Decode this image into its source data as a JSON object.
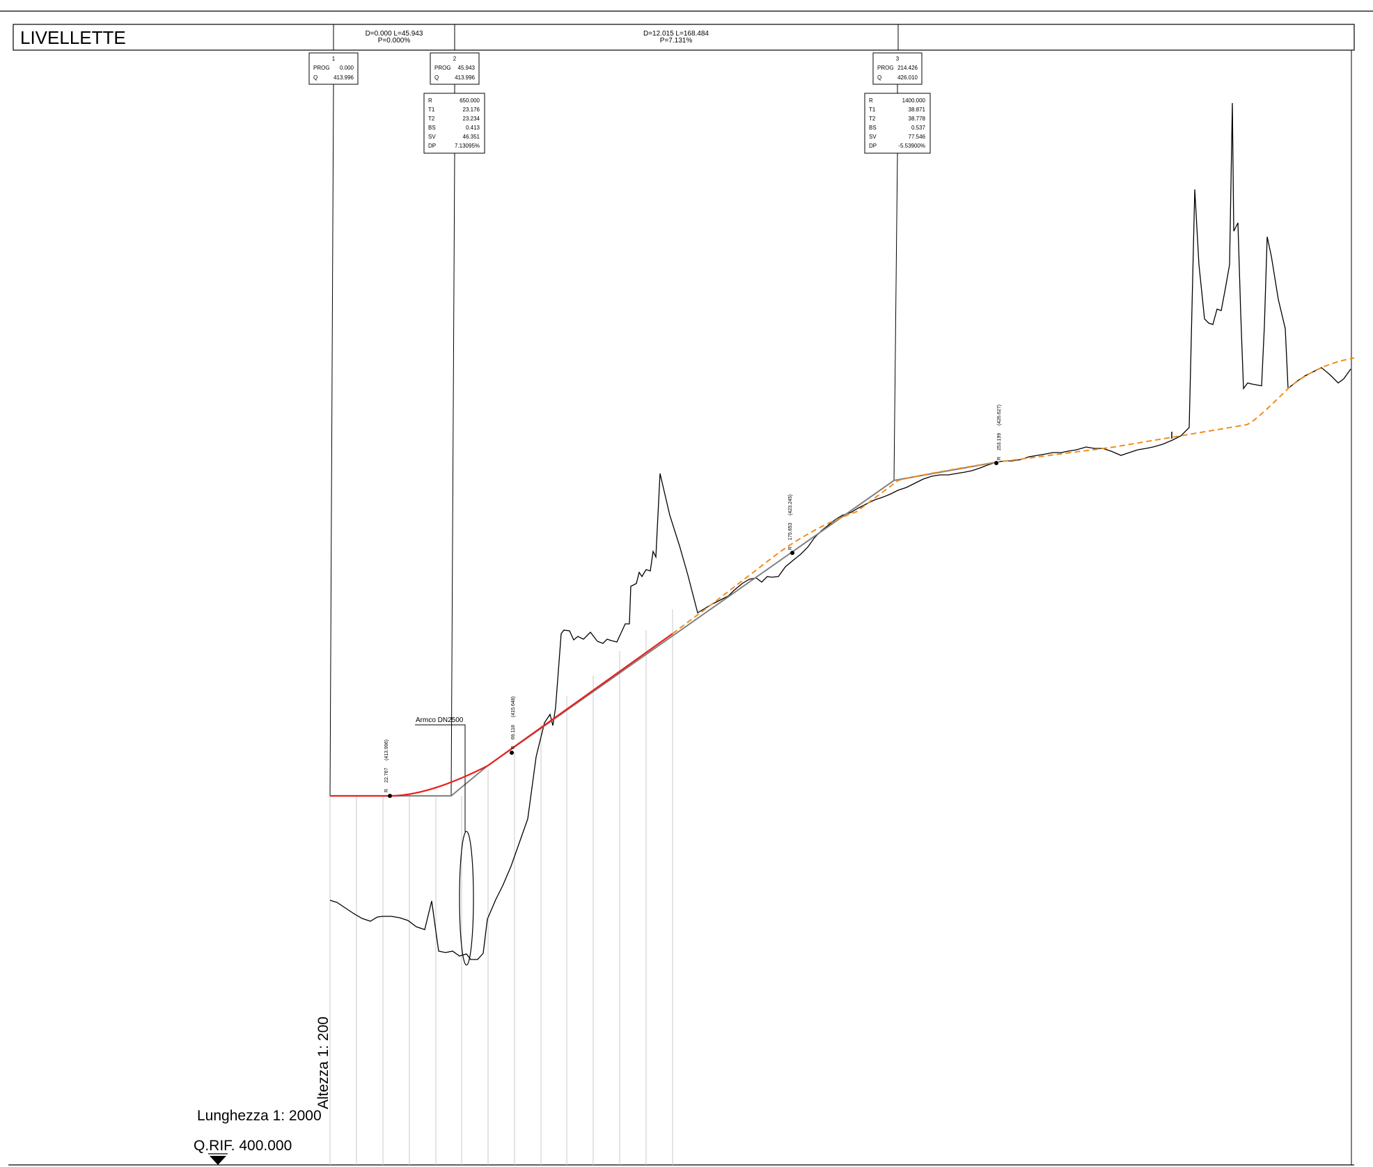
{
  "title": "LIVELLETTE",
  "segments": [
    {
      "line1": "D=0.000 L=45.943",
      "line2": "P=0.000%"
    },
    {
      "line1": "D=12.015 L=168.484",
      "line2": "P=7.131%"
    }
  ],
  "vertices": [
    {
      "num": "1",
      "prog_label": "PROG",
      "prog": "0.000",
      "q_label": "Q",
      "q": "413.996"
    },
    {
      "num": "2",
      "prog_label": "PROG",
      "prog": "45.943",
      "q_label": "Q",
      "q": "413.996"
    },
    {
      "num": "3",
      "prog_label": "PROG",
      "prog": "214.426",
      "q_label": "Q",
      "q": "426.010"
    }
  ],
  "curves": [
    {
      "rows": [
        {
          "k": "R",
          "v": "650.000"
        },
        {
          "k": "T1",
          "v": "23.176"
        },
        {
          "k": "T2",
          "v": "23.234"
        },
        {
          "k": "BS",
          "v": "0.413"
        },
        {
          "k": "SV",
          "v": "46.351"
        },
        {
          "k": "DP",
          "v": "7.13095%"
        }
      ]
    },
    {
      "rows": [
        {
          "k": "R",
          "v": "1400.000"
        },
        {
          "k": "T1",
          "v": "38.871"
        },
        {
          "k": "T2",
          "v": "38.778"
        },
        {
          "k": "BS",
          "v": "0.537"
        },
        {
          "k": "SV",
          "v": "77.546"
        },
        {
          "k": "DP",
          "v": "-5.53900%"
        }
      ]
    }
  ],
  "points": [
    {
      "prefix": "R",
      "prog": "22.767",
      "q": "(413.996)"
    },
    {
      "prefix": "R",
      "prog": "69.118",
      "q": "(415.648)"
    },
    {
      "prefix": "R",
      "prog": "175.653",
      "q": "(423.245)"
    },
    {
      "prefix": "R",
      "prog": "253.199",
      "q": "(426.627)"
    }
  ],
  "culvert_label": "Armco DN2500",
  "scale_height": "Altezza 1: 200",
  "scale_length": "Lunghezza 1: 2000",
  "qrif": "Q.RIF. 400.000",
  "colors": {
    "design_line": "#e8201e",
    "projection": "#f08c1e",
    "tangents": "#808080",
    "terrain": "#000000",
    "grid": "#c8c8c8"
  }
}
